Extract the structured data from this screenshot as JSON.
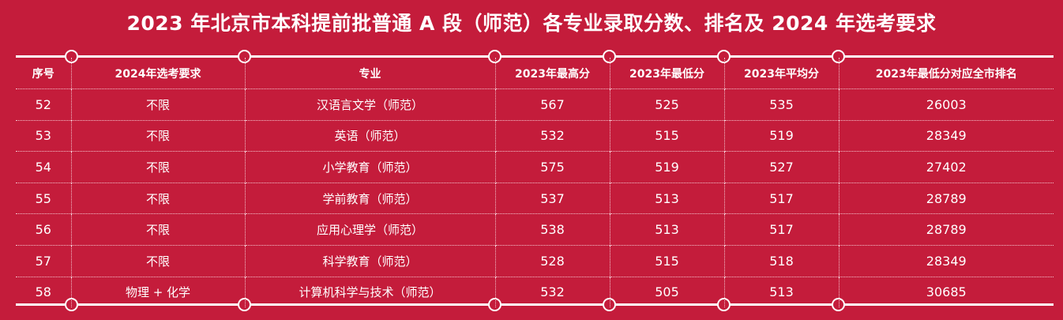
{
  "title": "2023 年北京市本科提前批普通 A 段（师范）各专业录取分数、排名及 2024 年选考要求",
  "headers": {
    "index": "序号",
    "requirement": "2024年选考要求",
    "major": "专业",
    "max_score": "2023年最高分",
    "min_score": "2023年最低分",
    "avg_score": "2023年平均分",
    "min_rank": "2023年最低分对应全市排名"
  },
  "rows": [
    {
      "index": "52",
      "requirement": "不限",
      "major": "汉语言文学（师范）",
      "max_score": "567",
      "min_score": "525",
      "avg_score": "535",
      "min_rank": "26003"
    },
    {
      "index": "53",
      "requirement": "不限",
      "major": "英语（师范）",
      "max_score": "532",
      "min_score": "515",
      "avg_score": "519",
      "min_rank": "28349"
    },
    {
      "index": "54",
      "requirement": "不限",
      "major": "小学教育（师范）",
      "max_score": "575",
      "min_score": "519",
      "avg_score": "527",
      "min_rank": "27402"
    },
    {
      "index": "55",
      "requirement": "不限",
      "major": "学前教育（师范）",
      "max_score": "537",
      "min_score": "513",
      "avg_score": "517",
      "min_rank": "28789"
    },
    {
      "index": "56",
      "requirement": "不限",
      "major": "应用心理学（师范）",
      "max_score": "538",
      "min_score": "513",
      "avg_score": "517",
      "min_rank": "28789"
    },
    {
      "index": "57",
      "requirement": "不限",
      "major": "科学教育（师范）",
      "max_score": "528",
      "min_score": "515",
      "avg_score": "518",
      "min_rank": "28349"
    },
    {
      "index": "58",
      "requirement": "物理 + 化学",
      "major": "计算机科学与技术（师范）",
      "max_score": "532",
      "min_score": "505",
      "avg_score": "513",
      "min_rank": "30685"
    }
  ],
  "colors": {
    "background": "#c41c3b",
    "text": "#ffffff",
    "divider": "#f3c3cd"
  }
}
